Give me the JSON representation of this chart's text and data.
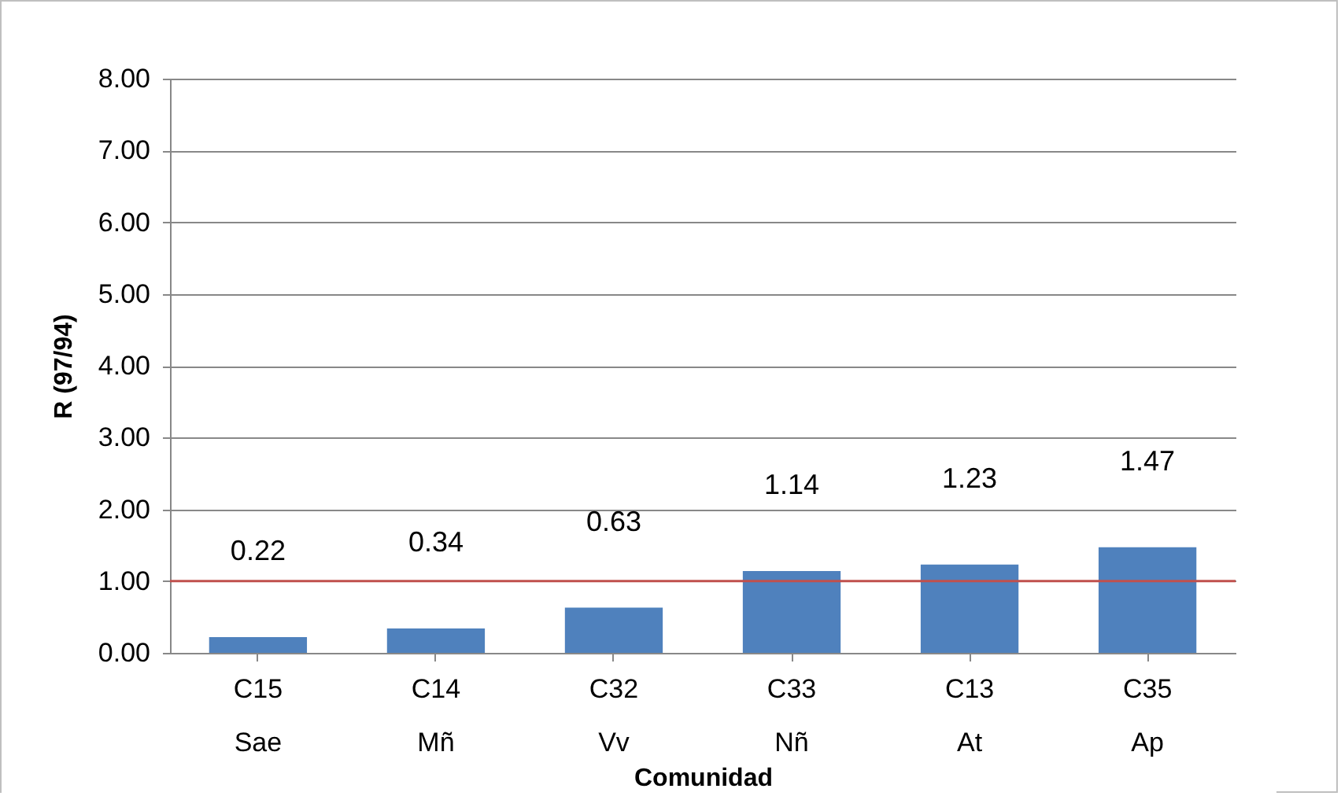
{
  "chart_data": {
    "type": "bar",
    "xlabel": "Comunidad",
    "ylabel": "R (97/94)",
    "categories": [
      "C15\nSae",
      "C14\nMñ",
      "C32\nVv",
      "C33\nNñ",
      "C13\nAt",
      "C35\nAp"
    ],
    "values": [
      0.22,
      0.34,
      0.63,
      1.14,
      1.23,
      1.47
    ],
    "color": "#4f81bd",
    "data_labels": true,
    "ylim": [
      0,
      8
    ],
    "yticks": [
      {
        "value": 0,
        "label": "0.00"
      },
      {
        "value": 1,
        "label": "1.00"
      },
      {
        "value": 2,
        "label": "2.00"
      },
      {
        "value": 3,
        "label": "3.00"
      },
      {
        "value": 4,
        "label": "4.00"
      },
      {
        "value": 5,
        "label": "5.00"
      },
      {
        "value": 6,
        "label": "6.00"
      },
      {
        "value": 7,
        "label": "7.00"
      },
      {
        "value": 8,
        "label": "8.00"
      }
    ],
    "grid": "y",
    "ref_lines": [
      {
        "axis": "y",
        "value": 1,
        "color": "#c0504d"
      }
    ]
  }
}
